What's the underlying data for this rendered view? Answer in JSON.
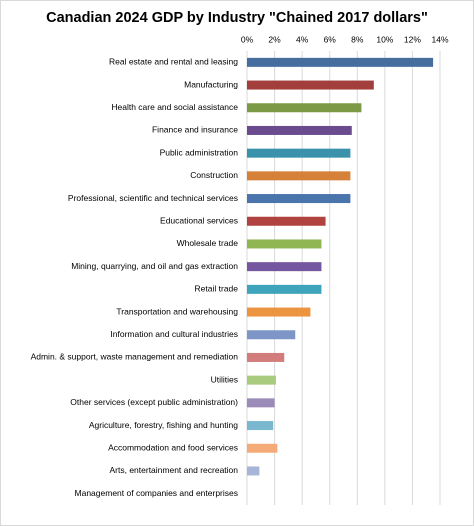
{
  "chart_data": {
    "type": "bar",
    "orientation": "horizontal",
    "title": "Canadian 2024 GDP by Industry \"Chained 2017 dollars\"",
    "categories": [
      "Real estate and rental and leasing",
      "Manufacturing",
      "Health care and social assistance",
      "Finance and insurance",
      "Public administration",
      "Construction",
      "Professional, scientific and technical services",
      "Educational services",
      "Wholesale trade",
      "Mining, quarrying, and oil and gas extraction",
      "Retail trade",
      "Transportation and warehousing",
      "Information and cultural industries",
      "Admin. & support, waste management and remediation",
      "Utilities",
      "Other services (except public administration)",
      "Agriculture, forestry, fishing and hunting",
      "Accommodation and food services",
      "Arts, entertainment and recreation",
      "Management of companies and enterprises"
    ],
    "values": [
      13.5,
      9.2,
      8.3,
      7.6,
      7.5,
      7.5,
      7.5,
      5.7,
      5.4,
      5.4,
      5.4,
      4.6,
      3.5,
      2.7,
      2.1,
      2.0,
      1.9,
      2.2,
      0.9,
      0
    ],
    "colors": [
      "#456d9e",
      "#a23f3d",
      "#7c9a45",
      "#6a4c8e",
      "#3a93aa",
      "#d6813a",
      "#4a74ac",
      "#b0423f",
      "#8fb653",
      "#7557a0",
      "#3ea4bc",
      "#ec9440",
      "#7d96c7",
      "#d27d7c",
      "#a9cb7e",
      "#9a8bb8",
      "#79b8cf",
      "#f5ab78",
      "#a6b6d9",
      "#d9a4a2"
    ],
    "xlim": [
      0,
      14
    ],
    "xticks": [
      {
        "value": 0,
        "label": "0%"
      },
      {
        "value": 2,
        "label": "2%"
      },
      {
        "value": 4,
        "label": "4%"
      },
      {
        "value": 6,
        "label": "6%"
      },
      {
        "value": 8,
        "label": "8%"
      },
      {
        "value": 10,
        "label": "10%"
      },
      {
        "value": 12,
        "label": "12%"
      },
      {
        "value": 14,
        "label": "14%"
      }
    ],
    "grid": true
  }
}
